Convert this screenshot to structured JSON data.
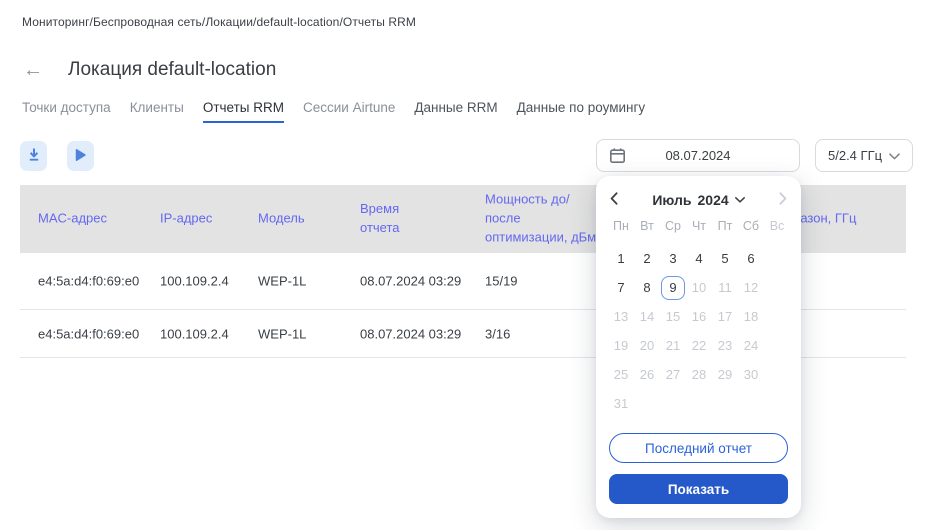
{
  "breadcrumb": {
    "text": "Мониторинг/Беспроводная сеть/Локации/default-location/Отчеты RRM"
  },
  "header": {
    "back_icon": "←",
    "title": "Локация default-location"
  },
  "tabs": [
    {
      "id": "access-points",
      "label": "Точки доступа",
      "state": "inactive"
    },
    {
      "id": "clients",
      "label": "Клиенты",
      "state": "inactive"
    },
    {
      "id": "rrm-reports",
      "label": "Отчеты RRM",
      "state": "active"
    },
    {
      "id": "airtune-sessions",
      "label": "Сессии Airtune",
      "state": "inactive"
    },
    {
      "id": "rrm-data",
      "label": "Данные RRM",
      "state": "inactive-dark"
    },
    {
      "id": "roaming-data",
      "label": "Данные по роумингу",
      "state": "inactive-dark"
    }
  ],
  "toolbar": {
    "download_icon": "download-arrow",
    "play_icon": "play-triangle"
  },
  "filters": {
    "date_value": "08.07.2024",
    "band_value": "5/2.4 ГГц"
  },
  "table": {
    "columns": [
      "MAC-адрес",
      "IP-адрес",
      "Модель",
      "Время отчета",
      "Мощность до/после оптимизации, дБм",
      "Диапазон, ГГц"
    ],
    "rows": [
      [
        "e4:5a:d4:f0:69:e0",
        "100.109.2.4",
        "WEP-1L",
        "08.07.2024 03:29",
        "15/19",
        ""
      ],
      [
        "e4:5a:d4:f0:69:e0",
        "100.109.2.4",
        "WEP-1L",
        "08.07.2024 03:29",
        "3/16",
        ""
      ]
    ]
  },
  "calendar": {
    "month_label": "Июль",
    "year_label": "2024",
    "weekdays": [
      "Пн",
      "Вт",
      "Ср",
      "Чт",
      "Пт",
      "Сб",
      "Вс"
    ],
    "selected_day": 9,
    "days": [
      {
        "d": 1,
        "state": "on"
      },
      {
        "d": 2,
        "state": "on"
      },
      {
        "d": 3,
        "state": "on"
      },
      {
        "d": 4,
        "state": "on"
      },
      {
        "d": 5,
        "state": "on"
      },
      {
        "d": 6,
        "state": "on"
      },
      {
        "d": 7,
        "state": "on"
      },
      {
        "d": 8,
        "state": "on"
      },
      {
        "d": 9,
        "state": "selected"
      },
      {
        "d": 10,
        "state": "off"
      },
      {
        "d": 11,
        "state": "off"
      },
      {
        "d": 12,
        "state": "off"
      },
      {
        "d": 13,
        "state": "off"
      },
      {
        "d": 14,
        "state": "off"
      },
      {
        "d": 15,
        "state": "off"
      },
      {
        "d": 16,
        "state": "off"
      },
      {
        "d": 17,
        "state": "off"
      },
      {
        "d": 18,
        "state": "off"
      },
      {
        "d": 19,
        "state": "off"
      },
      {
        "d": 20,
        "state": "off"
      },
      {
        "d": 21,
        "state": "off"
      },
      {
        "d": 22,
        "state": "off"
      },
      {
        "d": 23,
        "state": "off"
      },
      {
        "d": 24,
        "state": "off"
      },
      {
        "d": 25,
        "state": "off"
      },
      {
        "d": 26,
        "state": "off"
      },
      {
        "d": 27,
        "state": "off"
      },
      {
        "d": 28,
        "state": "off"
      },
      {
        "d": 29,
        "state": "off"
      },
      {
        "d": 30,
        "state": "off"
      },
      {
        "d": 31,
        "state": "off"
      }
    ],
    "last_report_label": "Последний отчет",
    "show_label": "Показать"
  },
  "colors": {
    "primary_blue": "#2558c9",
    "accent_blue": "#2b63d9",
    "table_header_link": "#6468f0",
    "icon_blue": "#4d83dd",
    "icon_btn_bg": "#e2edfc",
    "table_header_bg": "#e3e3e3",
    "disabled_text": "#c6cad0",
    "selected_day_border": "#6d95e8"
  }
}
